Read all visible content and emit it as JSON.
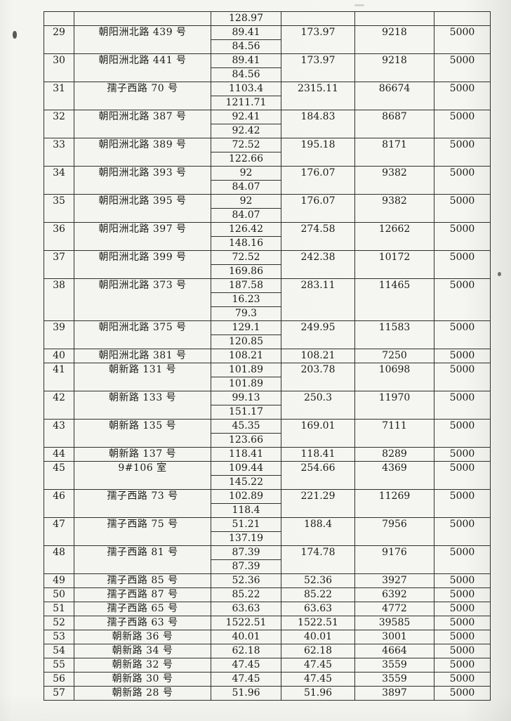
{
  "colors": {
    "paper": "#f4f4f0",
    "ink": "#1a1a17",
    "line": "#2e2e2a"
  },
  "table": {
    "partial_top_row": {
      "sub_value": "128.97"
    },
    "rows": [
      {
        "no": "29",
        "address": "朝阳洲北路 439 号",
        "subs": [
          "89.41",
          "84.56"
        ],
        "total": "173.97",
        "amount": "9218",
        "fee": "5000"
      },
      {
        "no": "30",
        "address": "朝阳洲北路 441 号",
        "subs": [
          "89.41",
          "84.56"
        ],
        "total": "173.97",
        "amount": "9218",
        "fee": "5000"
      },
      {
        "no": "31",
        "address": "孺子西路 70 号",
        "subs": [
          "1103.4",
          "1211.71"
        ],
        "total": "2315.11",
        "amount": "86674",
        "fee": "5000"
      },
      {
        "no": "32",
        "address": "朝阳洲北路 387 号",
        "subs": [
          "92.41",
          "92.42"
        ],
        "total": "184.83",
        "amount": "8687",
        "fee": "5000"
      },
      {
        "no": "33",
        "address": "朝阳洲北路 389 号",
        "subs": [
          "72.52",
          "122.66"
        ],
        "total": "195.18",
        "amount": "8171",
        "fee": "5000"
      },
      {
        "no": "34",
        "address": "朝阳洲北路 393 号",
        "subs": [
          "92",
          "84.07"
        ],
        "total": "176.07",
        "amount": "9382",
        "fee": "5000"
      },
      {
        "no": "35",
        "address": "朝阳洲北路 395 号",
        "subs": [
          "92",
          "84.07"
        ],
        "total": "176.07",
        "amount": "9382",
        "fee": "5000"
      },
      {
        "no": "36",
        "address": "朝阳洲北路 397 号",
        "subs": [
          "126.42",
          "148.16"
        ],
        "total": "274.58",
        "amount": "12662",
        "fee": "5000"
      },
      {
        "no": "37",
        "address": "朝阳洲北路 399 号",
        "subs": [
          "72.52",
          "169.86"
        ],
        "total": "242.38",
        "amount": "10172",
        "fee": "5000"
      },
      {
        "no": "38",
        "address": "朝阳洲北路 373 号",
        "subs": [
          "187.58",
          "16.23",
          "79.3"
        ],
        "total": "283.11",
        "amount": "11465",
        "fee": "5000"
      },
      {
        "no": "39",
        "address": "朝阳洲北路 375 号",
        "subs": [
          "129.1",
          "120.85"
        ],
        "total": "249.95",
        "amount": "11583",
        "fee": "5000"
      },
      {
        "no": "40",
        "address": "朝阳洲北路 381 号",
        "subs": [
          "108.21"
        ],
        "total": "108.21",
        "amount": "7250",
        "fee": "5000"
      },
      {
        "no": "41",
        "address": "朝新路 131 号",
        "subs": [
          "101.89",
          "101.89"
        ],
        "total": "203.78",
        "amount": "10698",
        "fee": "5000"
      },
      {
        "no": "42",
        "address": "朝新路 133 号",
        "subs": [
          "99.13",
          "151.17"
        ],
        "total": "250.3",
        "amount": "11970",
        "fee": "5000"
      },
      {
        "no": "43",
        "address": "朝新路 135 号",
        "subs": [
          "45.35",
          "123.66"
        ],
        "total": "169.01",
        "amount": "7111",
        "fee": "5000"
      },
      {
        "no": "44",
        "address": "朝新路 137 号",
        "subs": [
          "118.41"
        ],
        "total": "118.41",
        "amount": "8289",
        "fee": "5000"
      },
      {
        "no": "45",
        "address": "9#106 室",
        "subs": [
          "109.44",
          "145.22"
        ],
        "total": "254.66",
        "amount": "4369",
        "fee": "5000"
      },
      {
        "no": "46",
        "address": "孺子西路 73 号",
        "subs": [
          "102.89",
          "118.4"
        ],
        "total": "221.29",
        "amount": "11269",
        "fee": "5000"
      },
      {
        "no": "47",
        "address": "孺子西路 75 号",
        "subs": [
          "51.21",
          "137.19"
        ],
        "total": "188.4",
        "amount": "7956",
        "fee": "5000"
      },
      {
        "no": "48",
        "address": "孺子西路 81 号",
        "subs": [
          "87.39",
          "87.39"
        ],
        "total": "174.78",
        "amount": "9176",
        "fee": "5000"
      },
      {
        "no": "49",
        "address": "孺子西路 85 号",
        "subs": [
          "52.36"
        ],
        "total": "52.36",
        "amount": "3927",
        "fee": "5000"
      },
      {
        "no": "50",
        "address": "孺子西路 87 号",
        "subs": [
          "85.22"
        ],
        "total": "85.22",
        "amount": "6392",
        "fee": "5000"
      },
      {
        "no": "51",
        "address": "孺子西路 65 号",
        "subs": [
          "63.63"
        ],
        "total": "63.63",
        "amount": "4772",
        "fee": "5000"
      },
      {
        "no": "52",
        "address": "孺子西路 63 号",
        "subs": [
          "1522.51"
        ],
        "total": "1522.51",
        "amount": "39585",
        "fee": "5000"
      },
      {
        "no": "53",
        "address": "朝新路 36 号",
        "subs": [
          "40.01"
        ],
        "total": "40.01",
        "amount": "3001",
        "fee": "5000"
      },
      {
        "no": "54",
        "address": "朝新路 34 号",
        "subs": [
          "62.18"
        ],
        "total": "62.18",
        "amount": "4664",
        "fee": "5000"
      },
      {
        "no": "55",
        "address": "朝新路 32 号",
        "subs": [
          "47.45"
        ],
        "total": "47.45",
        "amount": "3559",
        "fee": "5000"
      },
      {
        "no": "56",
        "address": "朝新路 30 号",
        "subs": [
          "47.45"
        ],
        "total": "47.45",
        "amount": "3559",
        "fee": "5000"
      },
      {
        "no": "57",
        "address": "朝新路 28 号",
        "subs": [
          "51.96"
        ],
        "total": "51.96",
        "amount": "3897",
        "fee": "5000"
      }
    ]
  }
}
